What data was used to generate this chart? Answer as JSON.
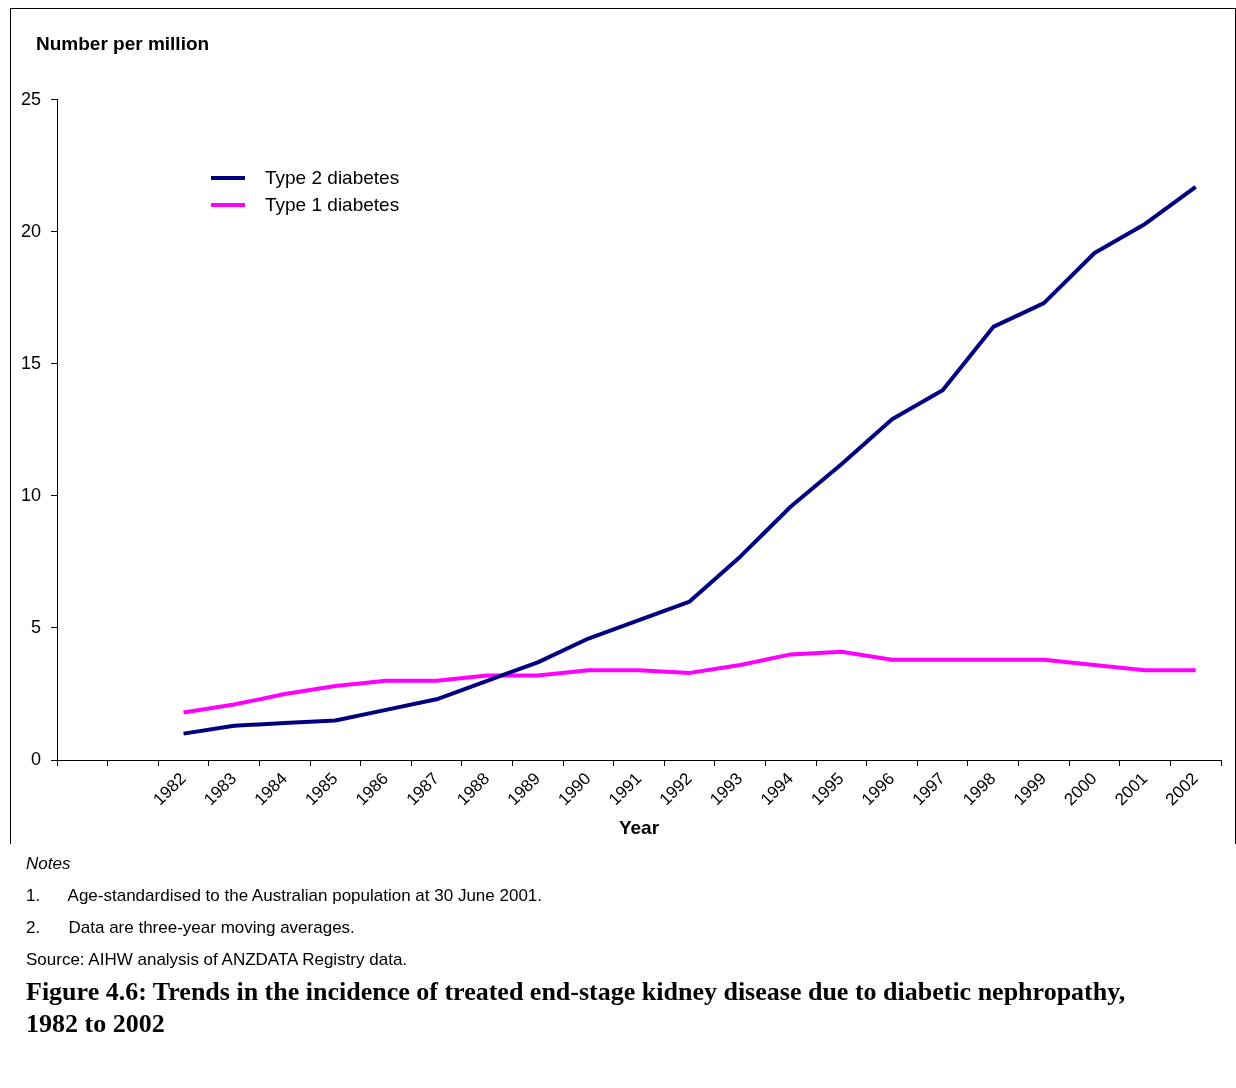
{
  "chart_data": {
    "type": "line",
    "title": "Figure 4.6: Trends in the incidence of treated end-stage kidney disease due to diabetic nephropathy, 1982 to 2002",
    "ylabel": "Number per million",
    "xlabel": "Year",
    "categories": [
      null,
      null,
      "1982",
      "1983",
      "1984",
      "1985",
      "1986",
      "1987",
      "1988",
      "1989",
      "1990",
      "1991",
      "1992",
      "1993",
      "1994",
      "1995",
      "1996",
      "1997",
      "1998",
      "1999",
      "2000",
      "2001",
      "2002"
    ],
    "series": [
      {
        "name": "Type 2 diabetes",
        "color": "#000080",
        "values": [
          null,
          null,
          1.0,
          1.3,
          1.4,
          1.5,
          1.9,
          2.3,
          3.0,
          3.7,
          4.6,
          5.3,
          6.0,
          7.7,
          9.6,
          11.2,
          12.9,
          14.0,
          16.4,
          17.3,
          19.2,
          20.3,
          21.7
        ]
      },
      {
        "name": "Type 1 diabetes",
        "color": "#ff00ff",
        "values": [
          null,
          null,
          1.8,
          2.1,
          2.5,
          2.8,
          3.0,
          3.0,
          3.2,
          3.2,
          3.4,
          3.4,
          3.3,
          3.6,
          4.0,
          4.1,
          3.8,
          3.8,
          3.8,
          3.8,
          3.6,
          3.4,
          3.4
        ]
      }
    ],
    "ylim": [
      0,
      25
    ],
    "yticks": [
      0,
      5,
      10,
      15,
      20,
      25
    ],
    "grid": false,
    "legend": "top left",
    "marker": "none",
    "line_style": "solid",
    "annotations": [
      "Notes",
      "1.      Age-standardised to the Australian population at 30 June 2001.",
      "2.      Data are three-year moving averages.",
      "Source: AIHW analysis of ANZDATA Registry data."
    ]
  }
}
